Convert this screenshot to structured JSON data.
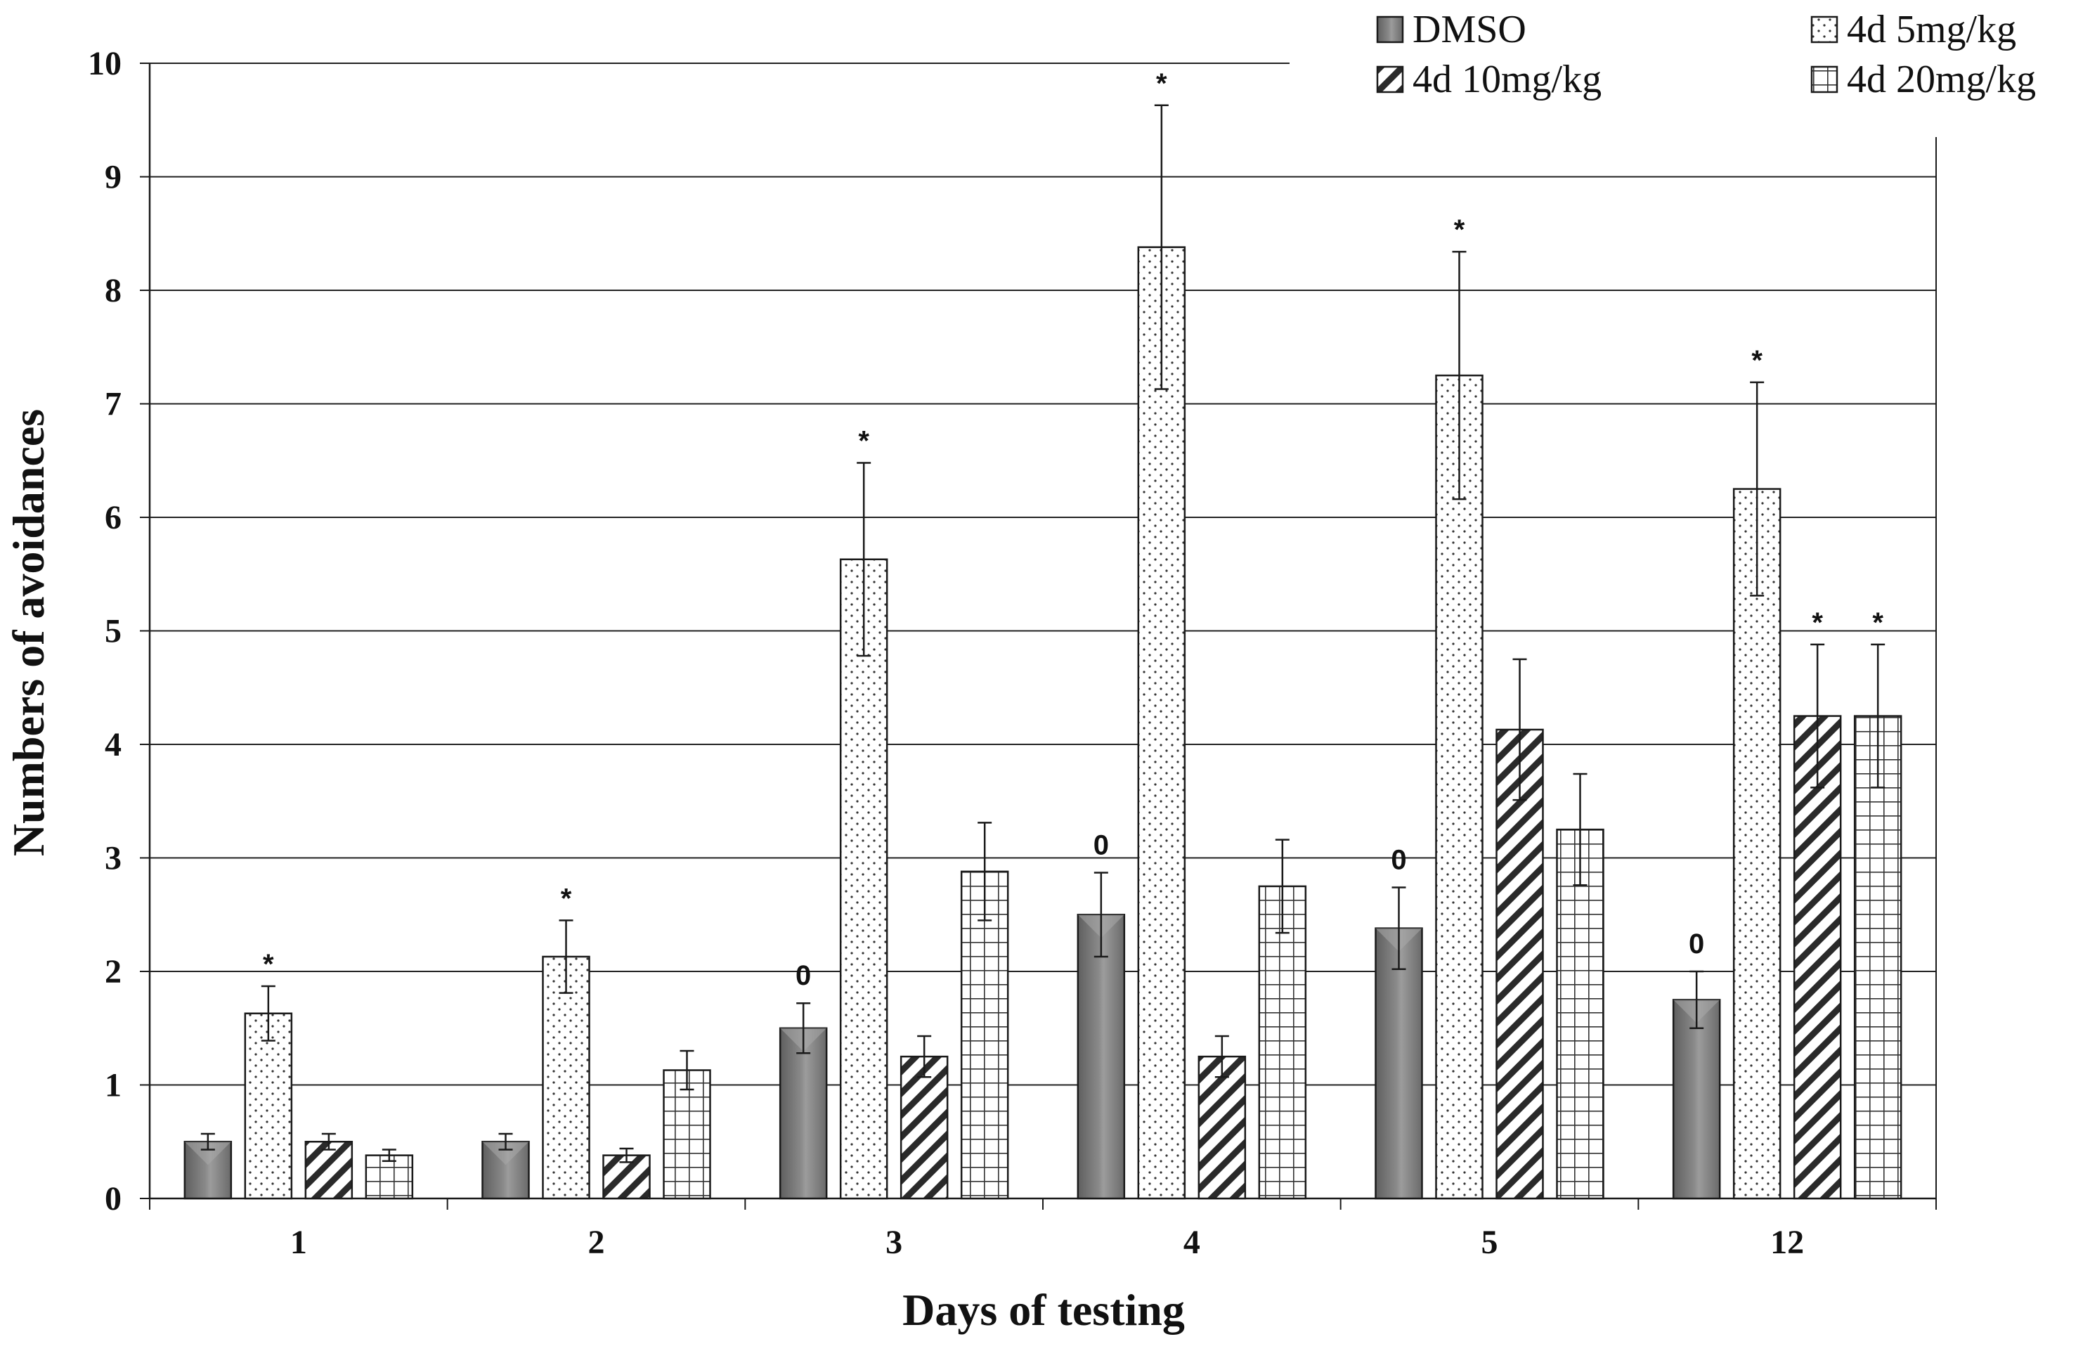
{
  "chart_data": {
    "type": "bar",
    "title": "",
    "xlabel": "Days of testing",
    "ylabel": "Numbers of avoidances",
    "ylim": [
      0,
      10
    ],
    "yticks": [
      0,
      1,
      2,
      3,
      4,
      5,
      6,
      7,
      8,
      9,
      10
    ],
    "ytick_labels": [
      "0",
      "1",
      "2",
      "3",
      "4",
      "5",
      "6",
      "7",
      "8",
      "9",
      "10"
    ],
    "grid": true,
    "legend_position": "top-right",
    "categories": [
      "1",
      "2",
      "3",
      "4",
      "5",
      "12"
    ],
    "series": [
      {
        "name": "DMSO",
        "pattern": "solid-gray",
        "values": [
          0.5,
          0.5,
          1.5,
          2.5,
          2.38,
          1.75
        ],
        "errors": [
          0.07,
          0.07,
          0.22,
          0.37,
          0.36,
          0.25
        ],
        "markers": [
          "",
          "",
          "0",
          "0",
          "0",
          "0"
        ]
      },
      {
        "name": "4d 5mg/kg",
        "pattern": "dots",
        "values": [
          1.63,
          2.13,
          5.63,
          8.38,
          7.25,
          6.25
        ],
        "errors": [
          0.24,
          0.32,
          0.85,
          1.25,
          1.09,
          0.94
        ],
        "markers": [
          "*",
          "*",
          "*",
          "*",
          "*",
          "*"
        ]
      },
      {
        "name": "4d 10mg/kg",
        "pattern": "diagonal",
        "values": [
          0.5,
          0.38,
          1.25,
          1.25,
          4.13,
          4.25
        ],
        "errors": [
          0.07,
          0.06,
          0.18,
          0.18,
          0.62,
          0.63
        ],
        "markers": [
          "",
          "",
          "",
          "",
          "",
          "*"
        ]
      },
      {
        "name": "4d 20mg/kg",
        "pattern": "grid",
        "values": [
          0.38,
          1.13,
          2.88,
          2.75,
          3.25,
          4.25
        ],
        "errors": [
          0.05,
          0.17,
          0.43,
          0.41,
          0.49,
          0.63
        ],
        "markers": [
          "",
          "",
          "",
          "",
          "",
          "*"
        ]
      }
    ],
    "colors": {
      "dmso_fill": "#808080",
      "dmso_light": "#b8b8b8",
      "dmso_dark": "#5a5a5a",
      "stroke": "#1a1a1a",
      "gridline": "#222222",
      "background": "#ffffff"
    }
  }
}
